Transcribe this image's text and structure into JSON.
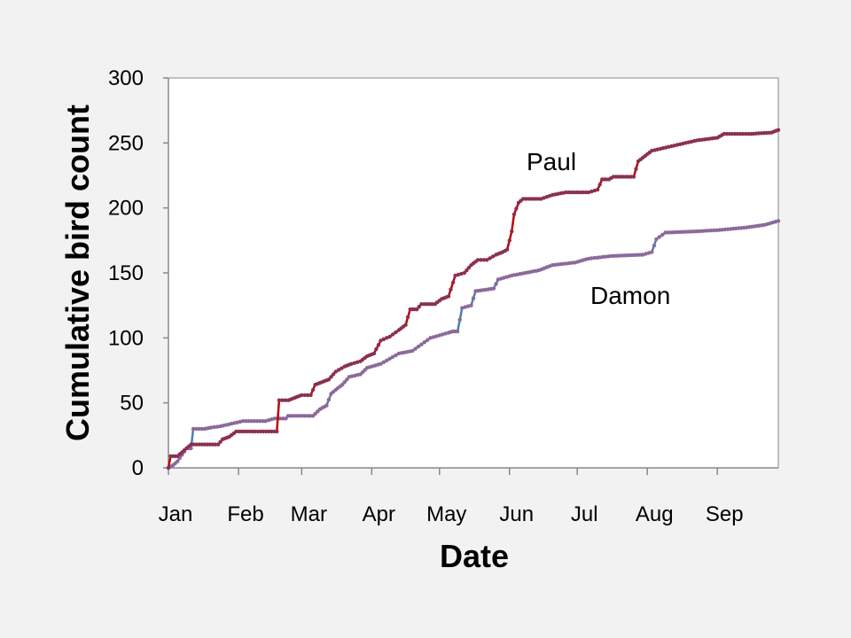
{
  "chart_data": {
    "type": "line",
    "xlabel": "Date",
    "ylabel": "Cumulative bird count",
    "ylim": [
      0,
      300
    ],
    "yticks": [
      0,
      50,
      100,
      150,
      200,
      250,
      300
    ],
    "xlim": [
      0,
      270
    ],
    "xticks": [
      {
        "label": "Jan",
        "value": 0
      },
      {
        "label": "Feb",
        "value": 31
      },
      {
        "label": "Mar",
        "value": 59
      },
      {
        "label": "Apr",
        "value": 90
      },
      {
        "label": "May",
        "value": 120
      },
      {
        "label": "Jun",
        "value": 151
      },
      {
        "label": "Jul",
        "value": 181
      },
      {
        "label": "Aug",
        "value": 212
      },
      {
        "label": "Sep",
        "value": 243
      }
    ],
    "grid": false,
    "legend": "none",
    "series": [
      {
        "name": "Paul",
        "color": "#c00000",
        "marker_color": "#8b3050",
        "values": [
          [
            0,
            0
          ],
          [
            1,
            9
          ],
          [
            4,
            9
          ],
          [
            6,
            12
          ],
          [
            8,
            15
          ],
          [
            10,
            18
          ],
          [
            22,
            18
          ],
          [
            24,
            22
          ],
          [
            27,
            24
          ],
          [
            30,
            28
          ],
          [
            48,
            28
          ],
          [
            49,
            52
          ],
          [
            53,
            52
          ],
          [
            56,
            54
          ],
          [
            59,
            56
          ],
          [
            63,
            56
          ],
          [
            65,
            64
          ],
          [
            68,
            66
          ],
          [
            71,
            68
          ],
          [
            74,
            74
          ],
          [
            78,
            78
          ],
          [
            81,
            80
          ],
          [
            85,
            82
          ],
          [
            88,
            86
          ],
          [
            91,
            88
          ],
          [
            94,
            98
          ],
          [
            98,
            101
          ],
          [
            102,
            106
          ],
          [
            105,
            110
          ],
          [
            107,
            122
          ],
          [
            110,
            122
          ],
          [
            112,
            126
          ],
          [
            118,
            126
          ],
          [
            121,
            130
          ],
          [
            124,
            132
          ],
          [
            127,
            148
          ],
          [
            131,
            150
          ],
          [
            134,
            156
          ],
          [
            137,
            160
          ],
          [
            141,
            160
          ],
          [
            145,
            164
          ],
          [
            148,
            166
          ],
          [
            150,
            168
          ],
          [
            152,
            182
          ],
          [
            153,
            195
          ],
          [
            155,
            204
          ],
          [
            157,
            207
          ],
          [
            165,
            207
          ],
          [
            170,
            210
          ],
          [
            176,
            212
          ],
          [
            186,
            212
          ],
          [
            190,
            214
          ],
          [
            192,
            222
          ],
          [
            195,
            222
          ],
          [
            197,
            224
          ],
          [
            206,
            224
          ],
          [
            208,
            236
          ],
          [
            211,
            240
          ],
          [
            214,
            244
          ],
          [
            219,
            246
          ],
          [
            224,
            248
          ],
          [
            229,
            250
          ],
          [
            234,
            252
          ],
          [
            243,
            254
          ],
          [
            246,
            257
          ],
          [
            258,
            257
          ],
          [
            267,
            258
          ],
          [
            270,
            260
          ]
        ]
      },
      {
        "name": "Damon",
        "color": "#4a7ebb",
        "marker_color": "#8a6a9a",
        "values": [
          [
            0,
            0
          ],
          [
            2,
            2
          ],
          [
            4,
            5
          ],
          [
            6,
            10
          ],
          [
            8,
            15
          ],
          [
            10,
            15
          ],
          [
            11,
            30
          ],
          [
            16,
            30
          ],
          [
            19,
            31
          ],
          [
            23,
            32
          ],
          [
            28,
            34
          ],
          [
            33,
            36
          ],
          [
            43,
            36
          ],
          [
            47,
            38
          ],
          [
            52,
            38
          ],
          [
            53,
            40
          ],
          [
            64,
            40
          ],
          [
            67,
            45
          ],
          [
            70,
            48
          ],
          [
            72,
            57
          ],
          [
            74,
            60
          ],
          [
            77,
            64
          ],
          [
            80,
            70
          ],
          [
            85,
            72
          ],
          [
            88,
            77
          ],
          [
            94,
            80
          ],
          [
            98,
            84
          ],
          [
            102,
            88
          ],
          [
            108,
            90
          ],
          [
            112,
            95
          ],
          [
            116,
            100
          ],
          [
            120,
            102
          ],
          [
            124,
            104
          ],
          [
            126,
            105
          ],
          [
            128,
            105
          ],
          [
            130,
            123
          ],
          [
            134,
            125
          ],
          [
            136,
            136
          ],
          [
            144,
            138
          ],
          [
            146,
            145
          ],
          [
            152,
            148
          ],
          [
            158,
            150
          ],
          [
            164,
            152
          ],
          [
            170,
            156
          ],
          [
            180,
            158
          ],
          [
            186,
            161
          ],
          [
            196,
            163
          ],
          [
            210,
            164
          ],
          [
            214,
            166
          ],
          [
            216,
            176
          ],
          [
            220,
            181
          ],
          [
            234,
            182
          ],
          [
            244,
            183
          ],
          [
            256,
            185
          ],
          [
            264,
            187
          ],
          [
            270,
            190
          ]
        ]
      }
    ]
  }
}
